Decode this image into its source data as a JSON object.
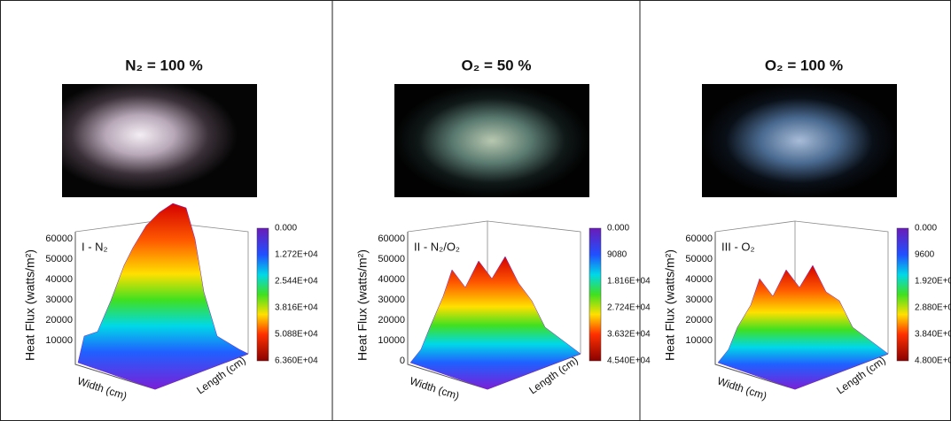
{
  "panels": [
    {
      "title": "N₂ = 100 %",
      "plot_label": "I - N₂",
      "y_axis_label": "Heat Flux (watts/m²)",
      "x_axis_label": "Width (cm)",
      "z_axis_label": "Length (cm)",
      "y_ticks": [
        "60000",
        "50000",
        "40000",
        "30000",
        "20000",
        "10000"
      ],
      "colorbar_labels": [
        "0.000",
        "1.272E+04",
        "2.544E+04",
        "3.816E+04",
        "5.088E+04",
        "6.360E+04"
      ]
    },
    {
      "title": "O₂ = 50 %",
      "plot_label": "II - N₂/O₂",
      "y_axis_label": "Heat Flux (watts/m²)",
      "x_axis_label": "Width (cm)",
      "z_axis_label": "Length (cm)",
      "y_ticks": [
        "60000",
        "50000",
        "40000",
        "30000",
        "20000",
        "10000",
        "0"
      ],
      "colorbar_labels": [
        "0.000",
        "9080",
        "1.816E+04",
        "2.724E+04",
        "3.632E+04",
        "4.540E+04"
      ]
    },
    {
      "title": "O₂ = 100 %",
      "plot_label": "III - O₂",
      "y_axis_label": "Heat Flux (watts/m²)",
      "x_axis_label": "Width (cm)",
      "z_axis_label": "Length (cm)",
      "y_ticks": [
        "60000",
        "50000",
        "40000",
        "30000",
        "20000",
        "10000"
      ],
      "colorbar_labels": [
        "0.000",
        "9600",
        "1.920E+04",
        "2.880E+04",
        "3.840E+04",
        "4.800E+04"
      ]
    }
  ]
}
